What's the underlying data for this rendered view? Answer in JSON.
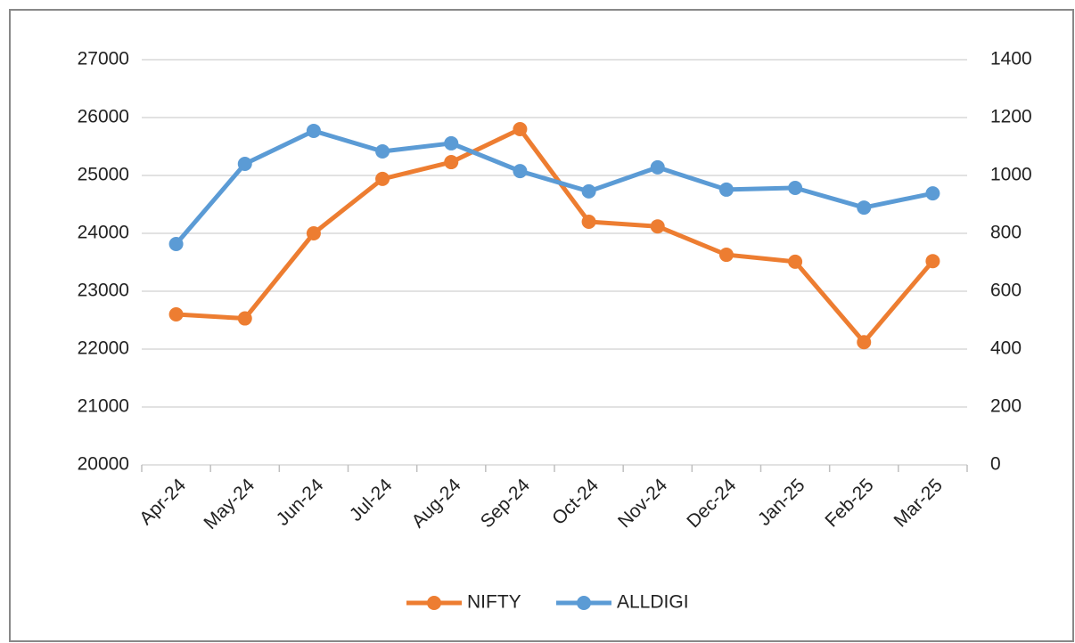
{
  "chart_data": {
    "type": "line",
    "categories": [
      "Apr-24",
      "May-24",
      "Jun-24",
      "Jul-24",
      "Aug-24",
      "Sep-24",
      "Oct-24",
      "Nov-24",
      "Dec-24",
      "Jan-25",
      "Feb-25",
      "Mar-25"
    ],
    "series": [
      {
        "name": "NIFTY",
        "color": "#ed7d31",
        "values": [
          22600,
          22530,
          24000,
          24940,
          25230,
          25800,
          24200,
          24120,
          23630,
          23510,
          22120,
          23520
        ]
      },
      {
        "name": "ALLDIGI",
        "color": "#5b9bd5",
        "axis": "y2",
        "values": [
          763,
          1040,
          1154,
          1083,
          1111,
          1015,
          945,
          1028,
          951,
          957,
          889,
          938
        ]
      }
    ],
    "ylim": [
      20000,
      27000
    ],
    "yticks": [
      20000,
      21000,
      22000,
      23000,
      24000,
      25000,
      26000,
      27000
    ],
    "y2lim": [
      0,
      1400
    ],
    "y2ticks": [
      0,
      200,
      400,
      600,
      800,
      1000,
      1200,
      1400
    ],
    "grid": true,
    "legend": "bottom"
  }
}
